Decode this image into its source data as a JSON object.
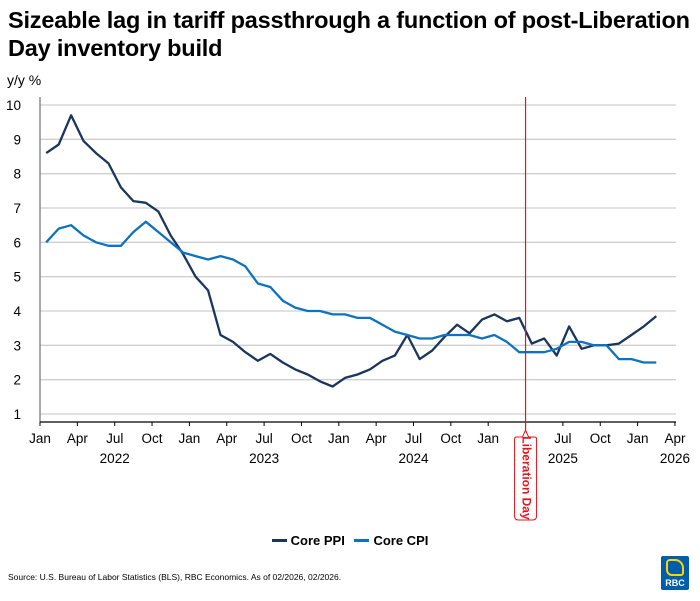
{
  "header": {
    "title": "Sizeable lag in tariff passthrough a function of post-Liberation Day inventory build",
    "yunit": "y/y %"
  },
  "footer": {
    "source": "Source: U.S. Bureau of Labor Statistics (BLS), RBC Economics. As of 02/2026, 02/2026.",
    "logo_text": "RBC"
  },
  "chart_data": {
    "type": "line",
    "title": "Sizeable lag in tariff passthrough a function of post-Liberation Day inventory build",
    "xlabel": "",
    "ylabel": "y/y %",
    "ylim": [
      0.7,
      10.2
    ],
    "yticks": [
      1,
      2,
      3,
      4,
      5,
      6,
      7,
      8,
      9,
      10
    ],
    "grid": true,
    "legend_position": "bottom-center",
    "x_start": "2022-01",
    "x_end_axis": "2026-04",
    "x_tick_labels": [
      "Jan",
      "Apr",
      "Jul",
      "Oct",
      "Jan",
      "Apr",
      "Jul",
      "Oct",
      "Jan",
      "Apr",
      "Jul",
      "Oct",
      "Jan",
      "Apr",
      "Jul",
      "Oct",
      "Jan",
      "Apr"
    ],
    "year_labels": [
      {
        "label": "2022",
        "month_index": 6
      },
      {
        "label": "2023",
        "month_index": 18
      },
      {
        "label": "2024",
        "month_index": 30
      },
      {
        "label": "2025",
        "month_index": 42
      },
      {
        "label": "2026",
        "month_index": 51
      }
    ],
    "x": [
      "2022-01",
      "2022-02",
      "2022-03",
      "2022-04",
      "2022-05",
      "2022-06",
      "2022-07",
      "2022-08",
      "2022-09",
      "2022-10",
      "2022-11",
      "2022-12",
      "2023-01",
      "2023-02",
      "2023-03",
      "2023-04",
      "2023-05",
      "2023-06",
      "2023-07",
      "2023-08",
      "2023-09",
      "2023-10",
      "2023-11",
      "2023-12",
      "2024-01",
      "2024-02",
      "2024-03",
      "2024-04",
      "2024-05",
      "2024-06",
      "2024-07",
      "2024-08",
      "2024-09",
      "2024-10",
      "2024-11",
      "2024-12",
      "2025-01",
      "2025-02",
      "2025-03",
      "2025-04",
      "2025-05",
      "2025-06",
      "2025-07",
      "2025-08",
      "2025-09",
      "2025-10",
      "2025-11",
      "2025-12",
      "2026-01",
      "2026-02"
    ],
    "series": [
      {
        "name": "Core PPI",
        "color": "#1B365D",
        "values": [
          8.6,
          8.85,
          9.7,
          8.95,
          8.6,
          8.3,
          7.6,
          7.2,
          7.15,
          6.9,
          6.2,
          5.65,
          5.0,
          4.6,
          3.3,
          3.1,
          2.8,
          2.55,
          2.75,
          2.5,
          2.3,
          2.15,
          1.95,
          1.8,
          2.05,
          2.15,
          2.3,
          2.55,
          2.7,
          3.3,
          2.6,
          2.85,
          3.25,
          3.6,
          3.35,
          3.75,
          3.9,
          3.7,
          3.8,
          3.05,
          3.2,
          2.7,
          3.55,
          2.9,
          3.0,
          3.0,
          3.05,
          3.3,
          3.55,
          3.85
        ]
      },
      {
        "name": "Core CPI",
        "color": "#0D73C1",
        "values": [
          6.0,
          6.4,
          6.5,
          6.2,
          6.0,
          5.9,
          5.9,
          6.3,
          6.6,
          6.3,
          6.0,
          5.7,
          5.6,
          5.5,
          5.6,
          5.5,
          5.3,
          4.8,
          4.7,
          4.3,
          4.1,
          4.0,
          4.0,
          3.9,
          3.9,
          3.8,
          3.8,
          3.6,
          3.4,
          3.3,
          3.2,
          3.2,
          3.3,
          3.3,
          3.3,
          3.2,
          3.3,
          3.1,
          2.8,
          2.8,
          2.8,
          2.9,
          3.1,
          3.1,
          3.0,
          3.0,
          2.6,
          2.6,
          2.5,
          2.5
        ]
      }
    ],
    "annotations": [
      {
        "type": "vline",
        "x": "2025-04",
        "label": "Liberation Day",
        "color": "#E8141B"
      }
    ]
  }
}
